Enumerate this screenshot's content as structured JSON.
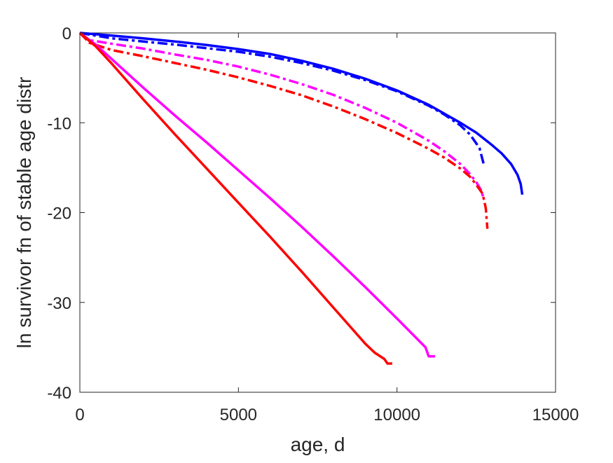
{
  "chart_data": {
    "type": "line",
    "title": "",
    "xlabel": "age, d",
    "ylabel": "ln survivor fn of stable age distr",
    "xlim": [
      0,
      15000
    ],
    "ylim": [
      -40,
      0
    ],
    "xticks": [
      0,
      5000,
      10000,
      15000
    ],
    "yticks": [
      0,
      -10,
      -20,
      -30,
      -40
    ],
    "xtick_labels": [
      "0",
      "5000",
      "10000",
      "15000"
    ],
    "ytick_labels": [
      "0",
      "-10",
      "-20",
      "-30",
      "-40"
    ],
    "grid": false,
    "legend": "none",
    "series": [
      {
        "color": "#0000ff",
        "style": "solid",
        "x": [
          0,
          1000,
          2000,
          3000,
          4000,
          5000,
          6000,
          7000,
          8000,
          9000,
          10000,
          11000,
          12000,
          12500,
          13000,
          13300,
          13600,
          13800,
          13900,
          13950
        ],
        "y": [
          0,
          -0.3,
          -0.6,
          -0.95,
          -1.35,
          -1.8,
          -2.35,
          -3.1,
          -4.0,
          -5.1,
          -6.4,
          -8.0,
          -10.0,
          -11.1,
          -12.5,
          -13.4,
          -14.6,
          -15.8,
          -16.8,
          -18.0
        ]
      },
      {
        "color": "#0000ff",
        "style": "dashdot",
        "x": [
          0,
          1000,
          2000,
          3000,
          4000,
          5000,
          6000,
          7000,
          8000,
          9000,
          10000,
          11000,
          11500,
          12000,
          12300,
          12600,
          12750
        ],
        "y": [
          0,
          -0.6,
          -0.95,
          -1.3,
          -1.7,
          -2.1,
          -2.65,
          -3.35,
          -4.2,
          -5.25,
          -6.5,
          -8.1,
          -9.1,
          -10.3,
          -11.3,
          -12.8,
          -14.8
        ]
      },
      {
        "color": "#ff00ff",
        "style": "dashdot",
        "x": [
          0,
          300,
          1000,
          2000,
          3000,
          4000,
          5000,
          6000,
          7000,
          8000,
          9000,
          10000,
          11000,
          11500,
          12000,
          12300,
          12500,
          12650,
          12750
        ],
        "y": [
          0,
          -0.8,
          -1.2,
          -1.75,
          -2.4,
          -3.0,
          -3.75,
          -4.65,
          -5.7,
          -6.9,
          -8.35,
          -10.0,
          -12.0,
          -13.2,
          -14.6,
          -15.7,
          -16.6,
          -17.5,
          -18.6
        ]
      },
      {
        "color": "#ff0000",
        "style": "dashdot",
        "x": [
          0,
          300,
          1000,
          2000,
          3000,
          4000,
          5000,
          6000,
          7000,
          8000,
          9000,
          10000,
          11000,
          11500,
          12000,
          12300,
          12500,
          12700,
          12800,
          12850
        ],
        "y": [
          0,
          -1.1,
          -1.9,
          -2.6,
          -3.35,
          -4.1,
          -4.95,
          -5.9,
          -6.95,
          -8.2,
          -9.6,
          -11.15,
          -12.9,
          -13.9,
          -15.1,
          -16.0,
          -16.9,
          -17.9,
          -19.5,
          -21.8
        ]
      },
      {
        "color": "#ff00ff",
        "style": "solid",
        "x": [
          0,
          500,
          1000,
          2000,
          3000,
          4000,
          5000,
          6000,
          7000,
          8000,
          9000,
          10000,
          10900,
          11000,
          11200
        ],
        "y": [
          0,
          -1.3,
          -2.9,
          -6.1,
          -9.2,
          -12.2,
          -15.3,
          -18.4,
          -21.6,
          -24.9,
          -28.3,
          -31.8,
          -35.0,
          -36.0,
          -36.0
        ]
      },
      {
        "color": "#ff0000",
        "style": "solid",
        "x": [
          0,
          500,
          1000,
          2000,
          3000,
          4000,
          5000,
          6000,
          7000,
          8000,
          9000,
          9300,
          9600,
          9700,
          9750,
          9850
        ],
        "y": [
          0,
          -1.5,
          -3.4,
          -7.4,
          -11.3,
          -15.1,
          -18.9,
          -22.7,
          -26.6,
          -30.6,
          -34.6,
          -35.6,
          -36.3,
          -36.8,
          -36.8,
          -36.8
        ]
      }
    ]
  }
}
